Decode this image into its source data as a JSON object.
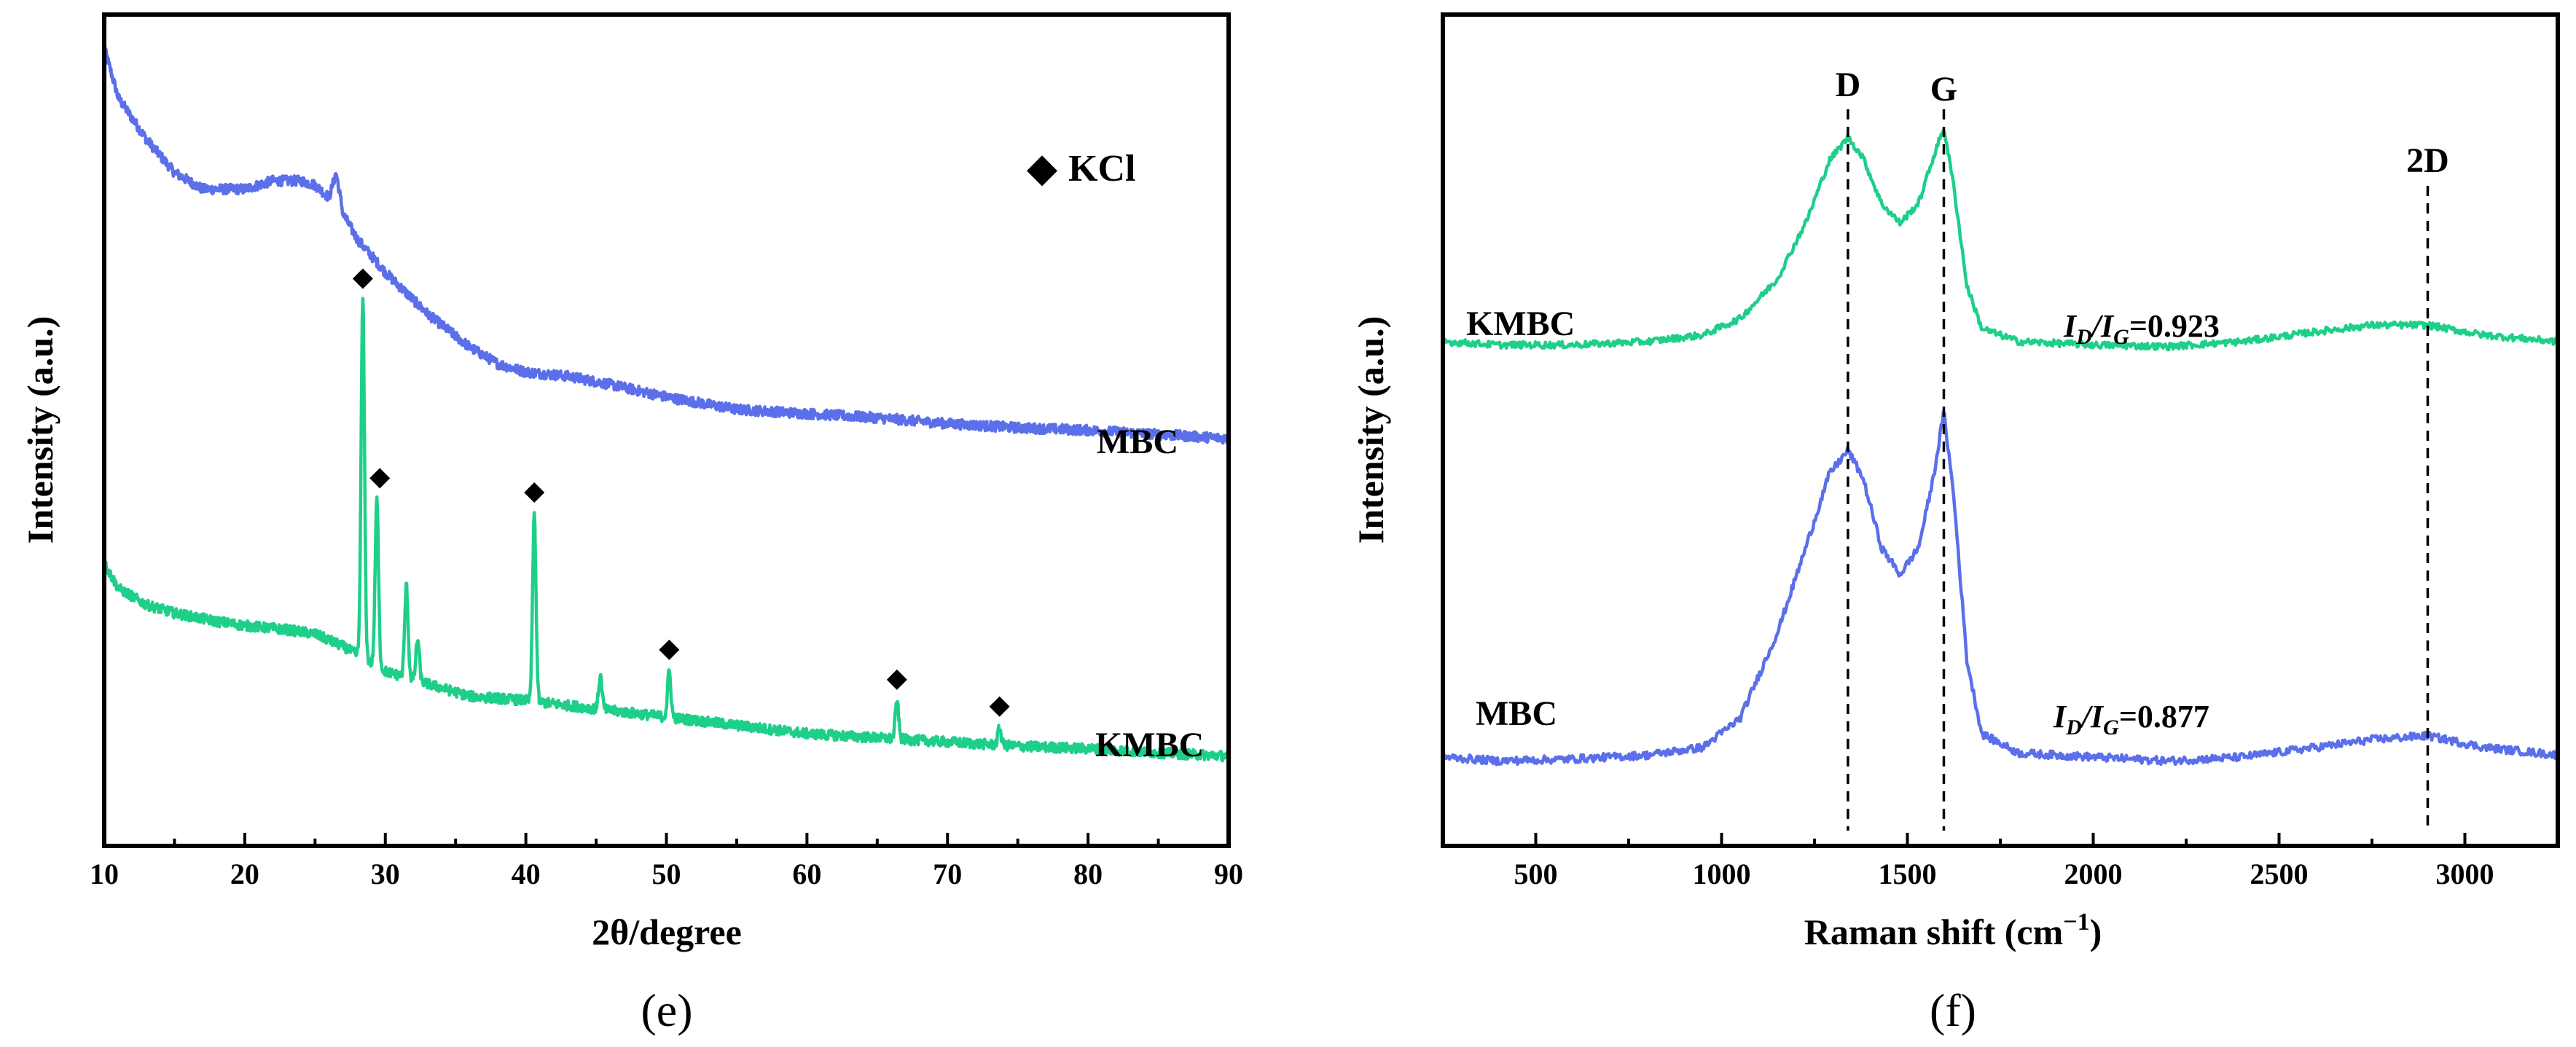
{
  "colors": {
    "mbc": "#5b6fea",
    "kmbc": "#1ecf8a",
    "axis": "#000000"
  },
  "chart_data": [
    {
      "type": "line",
      "panel": "(e)",
      "title": "",
      "xlabel": "2θ/degree",
      "ylabel": "Intensity (a.u.)",
      "xlim": [
        10,
        90
      ],
      "xticks": [
        "10",
        "20",
        "30",
        "40",
        "50",
        "60",
        "70",
        "80",
        "90"
      ],
      "grid": false,
      "legend": {
        "symbol": "◆",
        "label": "KCl"
      },
      "series": [
        {
          "name": "MBC",
          "color": "#5b6fea",
          "baseline": [
            [
              10,
              0.96
            ],
            [
              11,
              0.9
            ],
            [
              13,
              0.85
            ],
            [
              15,
              0.81
            ],
            [
              17,
              0.79
            ],
            [
              20,
              0.79
            ],
            [
              22,
              0.8
            ],
            [
              24,
              0.8
            ],
            [
              25,
              0.795
            ],
            [
              26,
              0.78
            ],
            [
              26.5,
              0.81
            ],
            [
              27,
              0.76
            ],
            [
              28,
              0.73
            ],
            [
              30,
              0.69
            ],
            [
              33,
              0.64
            ],
            [
              36,
              0.6
            ],
            [
              38,
              0.58
            ],
            [
              40,
              0.57
            ],
            [
              43,
              0.565
            ],
            [
              46,
              0.555
            ],
            [
              50,
              0.54
            ],
            [
              55,
              0.525
            ],
            [
              60,
              0.52
            ],
            [
              65,
              0.515
            ],
            [
              70,
              0.508
            ],
            [
              75,
              0.503
            ],
            [
              80,
              0.5
            ],
            [
              85,
              0.495
            ],
            [
              90,
              0.49
            ]
          ],
          "peaks": []
        },
        {
          "name": "KMBC",
          "color": "#1ecf8a",
          "baseline": [
            [
              10,
              0.34
            ],
            [
              11,
              0.31
            ],
            [
              13,
              0.29
            ],
            [
              15,
              0.28
            ],
            [
              18,
              0.27
            ],
            [
              20,
              0.265
            ],
            [
              23,
              0.26
            ],
            [
              25,
              0.255
            ],
            [
              27,
              0.24
            ],
            [
              28,
              0.23
            ],
            [
              30,
              0.21
            ],
            [
              33,
              0.195
            ],
            [
              36,
              0.18
            ],
            [
              40,
              0.175
            ],
            [
              45,
              0.165
            ],
            [
              50,
              0.155
            ],
            [
              55,
              0.145
            ],
            [
              60,
              0.135
            ],
            [
              65,
              0.13
            ],
            [
              70,
              0.125
            ],
            [
              75,
              0.12
            ],
            [
              80,
              0.117
            ],
            [
              85,
              0.112
            ],
            [
              90,
              0.108
            ]
          ],
          "peaks": [
            [
              28.4,
              0.43
            ],
            [
              29.4,
              0.2
            ],
            [
              31.5,
              0.11
            ],
            [
              32.3,
              0.05
            ],
            [
              40.6,
              0.225
            ],
            [
              45.3,
              0.04
            ],
            [
              50.2,
              0.055
            ],
            [
              66.4,
              0.045
            ],
            [
              73.7,
              0.02
            ]
          ]
        }
      ],
      "series_labels": [
        "MBC",
        "KMBC"
      ],
      "markers": [
        {
          "x": 28.4,
          "label": "◆"
        },
        {
          "x": 29.4,
          "label": "◆"
        },
        {
          "x": 40.6,
          "label": "◆"
        },
        {
          "x": 50.2,
          "label": "◆"
        },
        {
          "x": 66.4,
          "label": "◆"
        },
        {
          "x": 73.7,
          "label": "◆"
        }
      ]
    },
    {
      "type": "line",
      "panel": "(f)",
      "title": "",
      "xlabel": "Raman shift (cm",
      "xlabel_sup": "−1",
      "xlabel_end": ")",
      "ylabel": "Intensity (a.u.)",
      "xlim": [
        250,
        3250
      ],
      "xticks": [
        "500",
        "1000",
        "1500",
        "2000",
        "2500",
        "3000"
      ],
      "grid": false,
      "bands": [
        {
          "label": "D",
          "x": 1340
        },
        {
          "label": "G",
          "x": 1598
        },
        {
          "label": "2D",
          "x": 2900
        }
      ],
      "series": [
        {
          "name": "KMBC",
          "color": "#1ecf8a",
          "ratio": "0.923",
          "points": [
            [
              250,
              0.08
            ],
            [
              400,
              0.07
            ],
            [
              600,
              0.07
            ],
            [
              800,
              0.08
            ],
            [
              950,
              0.1
            ],
            [
              1050,
              0.15
            ],
            [
              1150,
              0.27
            ],
            [
              1230,
              0.45
            ],
            [
              1290,
              0.63
            ],
            [
              1340,
              0.7
            ],
            [
              1380,
              0.64
            ],
            [
              1430,
              0.5
            ],
            [
              1480,
              0.44
            ],
            [
              1530,
              0.5
            ],
            [
              1570,
              0.64
            ],
            [
              1598,
              0.73
            ],
            [
              1625,
              0.55
            ],
            [
              1660,
              0.25
            ],
            [
              1700,
              0.12
            ],
            [
              1800,
              0.08
            ],
            [
              2000,
              0.07
            ],
            [
              2200,
              0.065
            ],
            [
              2400,
              0.08
            ],
            [
              2600,
              0.11
            ],
            [
              2750,
              0.13
            ],
            [
              2900,
              0.13
            ],
            [
              3050,
              0.1
            ],
            [
              3250,
              0.08
            ]
          ]
        },
        {
          "name": "MBC",
          "color": "#5b6fea",
          "ratio": "0.877",
          "points": [
            [
              250,
              0.03
            ],
            [
              400,
              0.02
            ],
            [
              600,
              0.025
            ],
            [
              800,
              0.035
            ],
            [
              950,
              0.055
            ],
            [
              1050,
              0.13
            ],
            [
              1150,
              0.35
            ],
            [
              1230,
              0.58
            ],
            [
              1290,
              0.76
            ],
            [
              1340,
              0.82
            ],
            [
              1380,
              0.75
            ],
            [
              1430,
              0.57
            ],
            [
              1480,
              0.5
            ],
            [
              1530,
              0.57
            ],
            [
              1570,
              0.75
            ],
            [
              1598,
              0.92
            ],
            [
              1625,
              0.7
            ],
            [
              1660,
              0.28
            ],
            [
              1700,
              0.09
            ],
            [
              1800,
              0.04
            ],
            [
              2000,
              0.03
            ],
            [
              2200,
              0.02
            ],
            [
              2400,
              0.03
            ],
            [
              2600,
              0.055
            ],
            [
              2750,
              0.075
            ],
            [
              2900,
              0.085
            ],
            [
              3050,
              0.055
            ],
            [
              3250,
              0.035
            ]
          ]
        }
      ]
    }
  ],
  "labels": {
    "e": "(e)",
    "f": "(f)",
    "kcl": "KCl",
    "diamond": "◆",
    "e_mbc": "MBC",
    "e_kmbc": "KMBC",
    "f_kmbc": "KMBC",
    "f_mbc": "MBC",
    "ratio_I": "I",
    "ratio_D": "D",
    "ratio_G": "G",
    "ratio_slash": "/",
    "ratio_eq_kmbc": "=0.923",
    "ratio_eq_mbc": "=0.877",
    "ylabel": "Intensity (a.u.)",
    "xlabel_e": "2θ/degree",
    "xlabel_f": "Raman shift (cm",
    "xlabel_f_sup": "−1",
    "xlabel_f_end": ")",
    "band_D": "D",
    "band_G": "G",
    "band_2D": "2D"
  }
}
